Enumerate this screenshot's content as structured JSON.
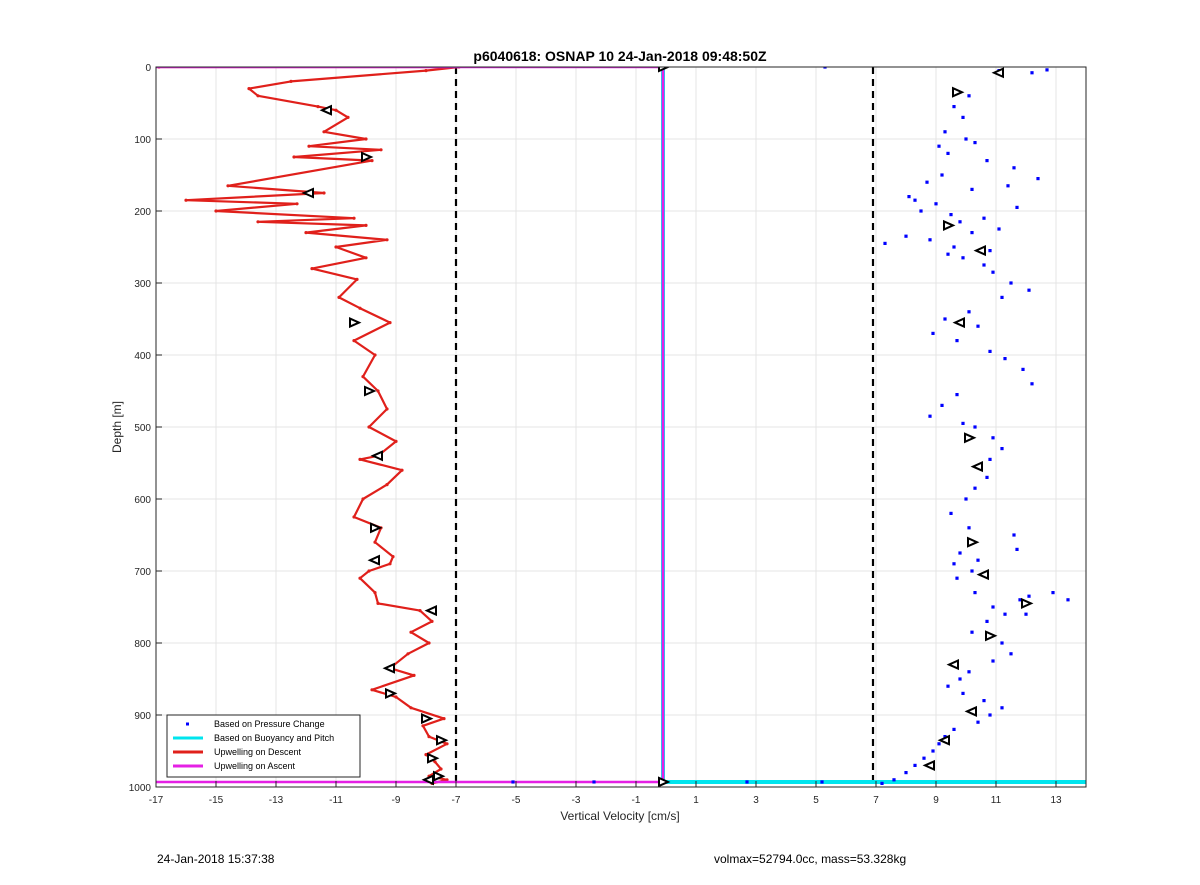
{
  "chart_data": {
    "type": "scatter",
    "title": "p6040618: OSNAP 10 24-Jan-2018 09:48:50Z",
    "xlabel": "Vertical Velocity [cm/s]",
    "ylabel": "Depth [m]",
    "xlim": [
      -17,
      14
    ],
    "ylim": [
      1000,
      0
    ],
    "y_reversed": true,
    "grid": true,
    "legend_position": "bottom-left",
    "x_ticks": [
      -17,
      -15,
      -13,
      -11,
      -9,
      -7,
      -5,
      -3,
      -1,
      1,
      3,
      5,
      7,
      9,
      11,
      13
    ],
    "y_ticks": [
      0,
      100,
      200,
      300,
      400,
      500,
      600,
      700,
      800,
      900,
      1000
    ],
    "threshold_lines": [
      -7,
      6.9
    ],
    "series": [
      {
        "name": "Based on Pressure Change",
        "style": "points",
        "color": "#0000ff",
        "x": [
          5.3,
          11.1,
          12.2,
          12.7,
          10.1,
          9.6,
          9.9,
          9.3,
          9.1,
          9.4,
          10.3,
          10.7,
          11.6,
          10.0,
          9.2,
          8.7,
          8.1,
          10.2,
          11.4,
          12.4,
          9.0,
          8.5,
          10.6,
          9.8,
          11.1,
          8.0,
          7.3,
          9.6,
          10.8,
          9.4,
          8.8,
          11.7,
          10.2,
          9.5,
          8.3,
          9.9,
          10.6,
          10.9,
          11.5,
          12.1,
          11.2,
          10.1,
          9.3,
          8.9,
          9.7,
          10.4,
          10.8,
          11.3,
          11.9,
          12.2,
          9.7,
          9.2,
          8.8,
          9.9,
          10.3,
          10.9,
          11.2,
          10.8,
          10.5,
          10.7,
          10.3,
          10.0,
          9.5,
          10.1,
          11.6,
          11.7,
          10.4,
          10.2,
          9.7,
          9.6,
          9.8,
          10.3,
          10.9,
          11.3,
          10.7,
          10.2,
          11.2,
          11.8,
          12.1,
          12.9,
          13.4,
          12.0,
          11.5,
          10.9,
          10.1,
          9.8,
          9.4,
          9.9,
          10.6,
          11.2,
          10.8,
          10.4,
          9.6,
          9.3,
          9.1,
          8.9,
          8.6,
          8.3,
          8.0,
          7.6,
          7.2,
          5.2,
          2.7,
          -2.4,
          -5.1,
          -0.1
        ],
        "y": [
          0,
          5,
          8,
          4,
          40,
          55,
          70,
          90,
          110,
          120,
          105,
          130,
          140,
          100,
          150,
          160,
          180,
          170,
          165,
          155,
          190,
          200,
          210,
          215,
          225,
          235,
          245,
          250,
          255,
          260,
          240,
          195,
          230,
          205,
          185,
          265,
          275,
          285,
          300,
          310,
          320,
          340,
          350,
          370,
          380,
          360,
          395,
          405,
          420,
          440,
          455,
          470,
          485,
          495,
          500,
          515,
          530,
          545,
          555,
          570,
          585,
          600,
          620,
          640,
          650,
          670,
          685,
          700,
          710,
          690,
          675,
          730,
          750,
          760,
          770,
          785,
          800,
          740,
          735,
          730,
          740,
          760,
          815,
          825,
          840,
          850,
          860,
          870,
          880,
          890,
          900,
          910,
          920,
          930,
          940,
          950,
          960,
          970,
          980,
          990,
          995,
          993,
          993,
          993,
          993,
          993
        ]
      },
      {
        "name": "Based on Buoyancy and Pitch",
        "style": "line",
        "color": "#00e5ee",
        "x": [
          -0.1,
          -0.1,
          -0.1,
          -0.1,
          -0.1,
          -0.1,
          14
        ],
        "y": [
          0,
          200,
          400,
          600,
          800,
          993,
          993
        ]
      },
      {
        "name": "Upwelling on Descent",
        "style": "line",
        "color": "#e0201b",
        "x": [
          -16.9,
          -6.9,
          -8.0,
          -12.5,
          -13.9,
          -13.6,
          -11.6,
          -11.0,
          -10.6,
          -11.4,
          -10.0,
          -11.9,
          -9.5,
          -12.4,
          -9.8,
          -14.6,
          -11.4,
          -16.0,
          -12.3,
          -15.0,
          -10.4,
          -13.6,
          -10.0,
          -12.0,
          -9.3,
          -11.0,
          -10.0,
          -11.8,
          -10.3,
          -10.9,
          -10.2,
          -9.2,
          -10.4,
          -9.7,
          -10.1,
          -9.6,
          -9.3,
          -9.9,
          -9.0,
          -9.6,
          -10.2,
          -8.8,
          -9.3,
          -10.1,
          -10.4,
          -9.5,
          -9.7,
          -9.1,
          -9.2,
          -9.9,
          -10.2,
          -9.7,
          -9.6,
          -8.2,
          -7.8,
          -8.5,
          -7.9,
          -8.6,
          -9.2,
          -8.4,
          -9.8,
          -9.0,
          -8.5,
          -7.4,
          -8.1,
          -7.9,
          -7.3,
          -8.0,
          -7.7,
          -7.5,
          -7.9,
          -7.3,
          -7.8
        ],
        "y": [
          0,
          0,
          5,
          20,
          30,
          40,
          55,
          60,
          70,
          90,
          100,
          110,
          115,
          125,
          130,
          165,
          175,
          185,
          190,
          200,
          210,
          215,
          220,
          230,
          240,
          250,
          265,
          280,
          295,
          320,
          335,
          355,
          380,
          400,
          430,
          450,
          475,
          500,
          520,
          540,
          545,
          560,
          580,
          600,
          625,
          640,
          660,
          680,
          690,
          700,
          710,
          730,
          745,
          755,
          770,
          785,
          800,
          815,
          835,
          845,
          865,
          875,
          890,
          905,
          915,
          930,
          940,
          955,
          965,
          975,
          985,
          990,
          995
        ]
      },
      {
        "name": "Upwelling on Ascent",
        "style": "line",
        "color": "#e520e5",
        "x": [
          -17,
          -0.1,
          -0.1,
          -17
        ],
        "y": [
          0,
          0,
          993,
          993
        ]
      }
    ],
    "markers": {
      "color": "#000000",
      "x": [
        -0.1,
        11.1,
        9.7,
        -11.3,
        -10.0,
        -11.9,
        9.4,
        10.5,
        -10.4,
        9.8,
        -9.9,
        -9.6,
        10.1,
        10.4,
        -9.7,
        -9.7,
        10.2,
        10.6,
        12.0,
        -7.8,
        10.8,
        -9.2,
        -9.2,
        9.6,
        -8.0,
        10.2,
        -7.5,
        9.3,
        -7.8,
        8.8,
        -7.6,
        -7.9,
        -0.1
      ],
      "y": [
        0,
        8,
        35,
        60,
        125,
        175,
        220,
        255,
        355,
        355,
        450,
        540,
        515,
        555,
        640,
        685,
        660,
        705,
        745,
        755,
        790,
        835,
        870,
        830,
        905,
        895,
        935,
        935,
        960,
        970,
        985,
        990,
        993
      ]
    }
  },
  "footer": {
    "timestamp": "24-Jan-2018 15:37:38",
    "summary": "volmax=52794.0cc, mass=53.328kg"
  }
}
